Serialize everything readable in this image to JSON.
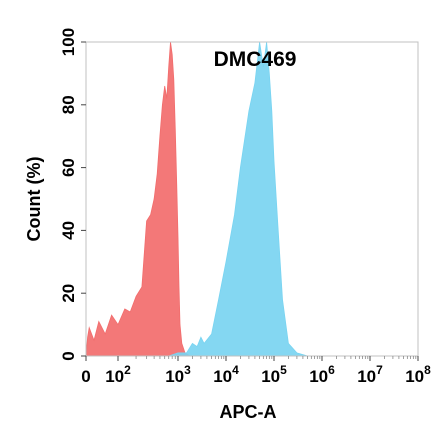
{
  "chart_data": {
    "type": "area",
    "title": "DMC469",
    "xlabel": "APC-A",
    "ylabel": "Count  (%)",
    "x_scale": "biexponential",
    "ylim": [
      0,
      100
    ],
    "y_ticks": [
      "0",
      "20",
      "40",
      "60",
      "80",
      "100"
    ],
    "x_ticks": [
      {
        "value": 0,
        "base": "0",
        "exp": ""
      },
      {
        "value": 100,
        "base": "10",
        "exp": "2"
      },
      {
        "value": 1000,
        "base": "10",
        "exp": "3"
      },
      {
        "value": 10000,
        "base": "10",
        "exp": "4"
      },
      {
        "value": 100000,
        "base": "10",
        "exp": "5"
      },
      {
        "value": 1000000,
        "base": "10",
        "exp": "6"
      },
      {
        "value": 10000000,
        "base": "10",
        "exp": "7"
      },
      {
        "value": 100000000,
        "base": "10",
        "exp": "8"
      }
    ],
    "series": [
      {
        "color": "#f26d6d",
        "points": [
          [
            0,
            0
          ],
          [
            5,
            6
          ],
          [
            10,
            9
          ],
          [
            25,
            5
          ],
          [
            40,
            11
          ],
          [
            60,
            7
          ],
          [
            80,
            13
          ],
          [
            100,
            10
          ],
          [
            130,
            15
          ],
          [
            160,
            14
          ],
          [
            200,
            19
          ],
          [
            250,
            22
          ],
          [
            300,
            43
          ],
          [
            350,
            45
          ],
          [
            400,
            50
          ],
          [
            450,
            58
          ],
          [
            500,
            70
          ],
          [
            550,
            80
          ],
          [
            600,
            86
          ],
          [
            650,
            82
          ],
          [
            700,
            92
          ],
          [
            750,
            100
          ],
          [
            800,
            96
          ],
          [
            850,
            88
          ],
          [
            900,
            72
          ],
          [
            950,
            55
          ],
          [
            1000,
            38
          ],
          [
            1050,
            22
          ],
          [
            1100,
            10
          ],
          [
            1200,
            4
          ],
          [
            1400,
            1
          ],
          [
            1800,
            0
          ]
        ]
      },
      {
        "color": "#79d4f1",
        "points": [
          [
            700,
            0
          ],
          [
            1000,
            1
          ],
          [
            1500,
            1
          ],
          [
            2000,
            4
          ],
          [
            2500,
            3
          ],
          [
            3000,
            6
          ],
          [
            3500,
            4
          ],
          [
            5000,
            7
          ],
          [
            7000,
            18
          ],
          [
            10000,
            30
          ],
          [
            15000,
            45
          ],
          [
            20000,
            60
          ],
          [
            30000,
            78
          ],
          [
            40000,
            87
          ],
          [
            50000,
            100
          ],
          [
            60000,
            92
          ],
          [
            70000,
            100
          ],
          [
            80000,
            90
          ],
          [
            90000,
            78
          ],
          [
            100000,
            62
          ],
          [
            120000,
            42
          ],
          [
            150000,
            18
          ],
          [
            200000,
            4
          ],
          [
            300000,
            1
          ],
          [
            500000,
            0
          ]
        ]
      }
    ]
  }
}
